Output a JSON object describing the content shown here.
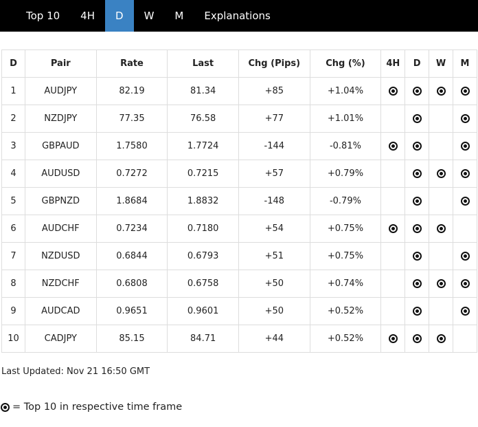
{
  "nav": {
    "items": [
      {
        "label": "Top 10",
        "active": false
      },
      {
        "label": "4H",
        "active": false
      },
      {
        "label": "D",
        "active": true
      },
      {
        "label": "W",
        "active": false
      },
      {
        "label": "M",
        "active": false
      },
      {
        "label": "Explanations",
        "active": false
      }
    ]
  },
  "table": {
    "headers": [
      "D",
      "Pair",
      "Rate",
      "Last",
      "Chg (Pips)",
      "Chg (%)",
      "4H",
      "D",
      "W",
      "M"
    ],
    "rows": [
      {
        "rank": "1",
        "pair": "AUDJPY",
        "rate": "82.19",
        "last": "81.34",
        "chg_pips": "+85",
        "chg_pct": "+1.04%",
        "marks": {
          "h4": true,
          "d": true,
          "w": true,
          "m": true
        }
      },
      {
        "rank": "2",
        "pair": "NZDJPY",
        "rate": "77.35",
        "last": "76.58",
        "chg_pips": "+77",
        "chg_pct": "+1.01%",
        "marks": {
          "h4": false,
          "d": true,
          "w": false,
          "m": true
        }
      },
      {
        "rank": "3",
        "pair": "GBPAUD",
        "rate": "1.7580",
        "last": "1.7724",
        "chg_pips": "-144",
        "chg_pct": "-0.81%",
        "marks": {
          "h4": true,
          "d": true,
          "w": false,
          "m": true
        }
      },
      {
        "rank": "4",
        "pair": "AUDUSD",
        "rate": "0.7272",
        "last": "0.7215",
        "chg_pips": "+57",
        "chg_pct": "+0.79%",
        "marks": {
          "h4": false,
          "d": true,
          "w": true,
          "m": true
        }
      },
      {
        "rank": "5",
        "pair": "GBPNZD",
        "rate": "1.8684",
        "last": "1.8832",
        "chg_pips": "-148",
        "chg_pct": "-0.79%",
        "marks": {
          "h4": false,
          "d": true,
          "w": false,
          "m": true
        }
      },
      {
        "rank": "6",
        "pair": "AUDCHF",
        "rate": "0.7234",
        "last": "0.7180",
        "chg_pips": "+54",
        "chg_pct": "+0.75%",
        "marks": {
          "h4": true,
          "d": true,
          "w": true,
          "m": false
        }
      },
      {
        "rank": "7",
        "pair": "NZDUSD",
        "rate": "0.6844",
        "last": "0.6793",
        "chg_pips": "+51",
        "chg_pct": "+0.75%",
        "marks": {
          "h4": false,
          "d": true,
          "w": false,
          "m": true
        }
      },
      {
        "rank": "8",
        "pair": "NZDCHF",
        "rate": "0.6808",
        "last": "0.6758",
        "chg_pips": "+50",
        "chg_pct": "+0.74%",
        "marks": {
          "h4": false,
          "d": true,
          "w": true,
          "m": true
        }
      },
      {
        "rank": "9",
        "pair": "AUDCAD",
        "rate": "0.9651",
        "last": "0.9601",
        "chg_pips": "+50",
        "chg_pct": "+0.52%",
        "marks": {
          "h4": false,
          "d": true,
          "w": false,
          "m": true
        }
      },
      {
        "rank": "10",
        "pair": "CADJPY",
        "rate": "85.15",
        "last": "84.71",
        "chg_pips": "+44",
        "chg_pct": "+0.52%",
        "marks": {
          "h4": true,
          "d": true,
          "w": true,
          "m": false
        }
      }
    ]
  },
  "footer": {
    "last_updated": "Last Updated: Nov 21 16:50 GMT",
    "legend_text": "= Top 10 in respective time frame"
  },
  "colors": {
    "accent": "#3a82c3",
    "nav_bg": "#000000",
    "border": "#dddddd",
    "text": "#222222",
    "marker": "#111111"
  }
}
